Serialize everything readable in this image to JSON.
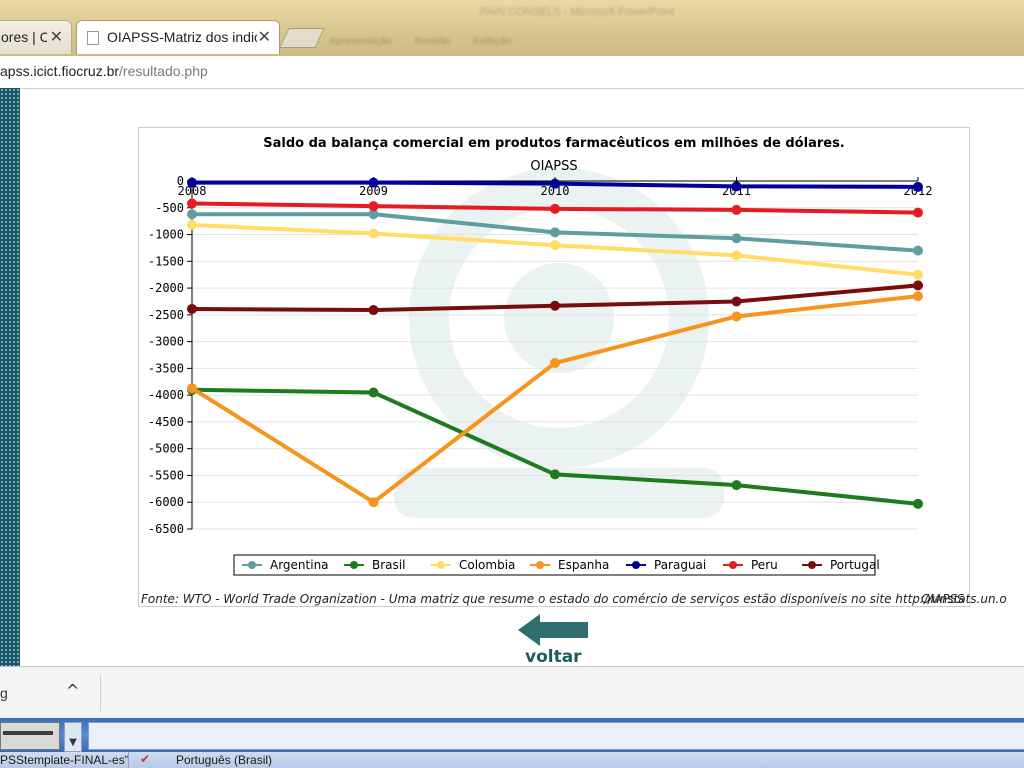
{
  "browser": {
    "powerpoint_title": "PAIN CONSELS - Microsoft PowerPoint",
    "powerpoint_menu": [
      "Apresentação",
      "Revisão",
      "Exibição"
    ],
    "tabs": [
      {
        "label": "ores | C",
        "close": "✕"
      },
      {
        "label": "OIAPSS-Matriz dos indic",
        "close": "✕"
      }
    ],
    "url_host": "apss.icict.fiocruz.br",
    "url_path": "/resultado.php"
  },
  "chart_data": {
    "type": "line",
    "title": "Saldo da balança comercial em produtos farmacêuticos em milhões de dólares.",
    "subtitle": "OIAPSS",
    "x": [
      "2008",
      "2009",
      "2010",
      "2011",
      "2012"
    ],
    "ylim": [
      -6500,
      0
    ],
    "yticks": [
      0,
      -500,
      -1000,
      -1500,
      -2000,
      -2500,
      -3000,
      -3500,
      -4000,
      -4500,
      -5000,
      -5500,
      -6000,
      -6500
    ],
    "grid": true,
    "legend_position": "bottom",
    "series": [
      {
        "name": "Argentina",
        "color": "#5f9ea0",
        "values": [
          -620,
          -620,
          -960,
          -1070,
          -1300
        ]
      },
      {
        "name": "Brasil",
        "color": "#1e7b1e",
        "values": [
          -3900,
          -3950,
          -5480,
          -5680,
          -6030
        ]
      },
      {
        "name": "Colombia",
        "color": "#ffdd66",
        "values": [
          -820,
          -980,
          -1200,
          -1390,
          -1750
        ]
      },
      {
        "name": "Espanha",
        "color": "#f7941d",
        "values": [
          -3870,
          -6000,
          -3400,
          -2530,
          -2150
        ]
      },
      {
        "name": "Paraguai",
        "color": "#000099",
        "values": [
          -30,
          -30,
          -50,
          -100,
          -110
        ]
      },
      {
        "name": "Peru",
        "color": "#e51c23",
        "values": [
          -420,
          -470,
          -520,
          -540,
          -590
        ]
      },
      {
        "name": "Portugal",
        "color": "#7a0c0c",
        "values": [
          -2390,
          -2410,
          -2330,
          -2250,
          -1950
        ]
      }
    ]
  },
  "chart_footer": {
    "source": "Fonte: WTO - World Trade Organization - Uma matriz que resume o estado do comércio de serviços estão disponíveis no site http://unstats.un.o",
    "tag": "OIAPSS"
  },
  "back_button": {
    "label": "voltar"
  },
  "download_shelf": {
    "item_label": "g",
    "chevron": "^"
  },
  "status_bar": {
    "file": "PSStemplate-FINAL-es\"",
    "language": "Português (Brasil)"
  }
}
